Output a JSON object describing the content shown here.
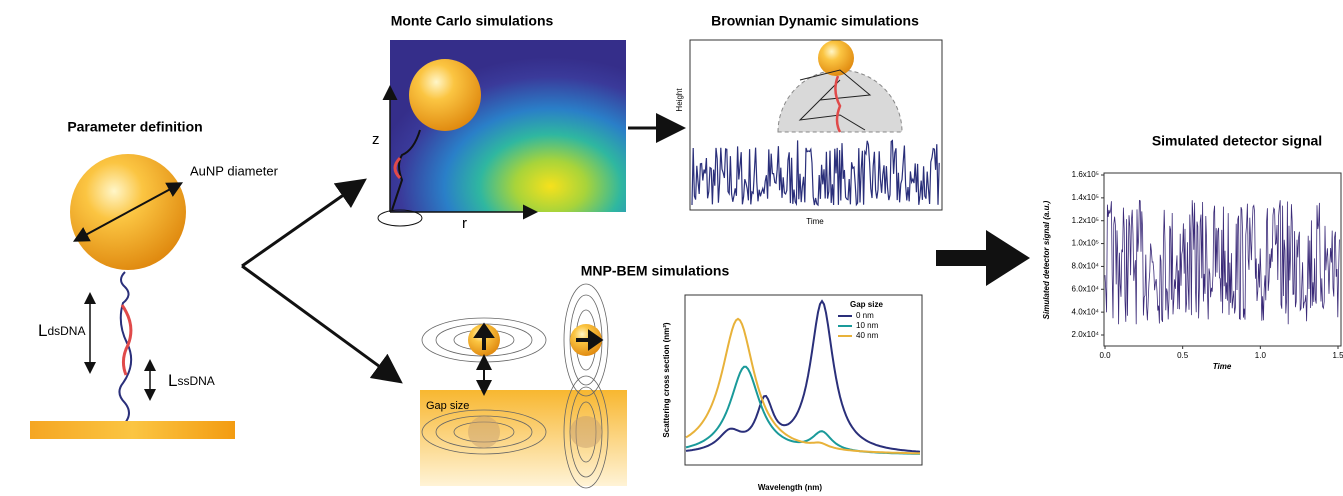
{
  "parameter_panel": {
    "title": "Parameter definition",
    "diameter_label": "AuNP diameter",
    "ds_main": "L",
    "ds_sub": "dsDNA",
    "ss_main": "L",
    "ss_sub": "ssDNA"
  },
  "monte_carlo": {
    "title": "Monte Carlo simulations",
    "z_label": "z",
    "r_label": "r"
  },
  "brownian": {
    "title": "Brownian Dynamic simulations",
    "y_label": "Height",
    "x_label": "Time"
  },
  "mnp_bem": {
    "title": "MNP-BEM simulations",
    "gap_label": "Gap size",
    "y_label": "Scattering cross section (nm²)",
    "x_label": "Wavelength (nm)",
    "legend_title": "Gap size",
    "legend": [
      "0 nm",
      "10 nm",
      "40 nm"
    ]
  },
  "detector": {
    "title": "Simulated detector signal",
    "y_label": "Simulated detector signal (a.u.)",
    "x_label": "Time",
    "yticks": [
      "1.6x10⁵",
      "1.4x10⁵",
      "1.2x10⁵",
      "1.0x10⁵",
      "8.0x10⁴",
      "6.0x10⁴",
      "4.0x10⁴",
      "2.0x10⁴"
    ],
    "xticks": [
      "0.0",
      "0.5",
      "1.0",
      "1.5"
    ]
  }
}
